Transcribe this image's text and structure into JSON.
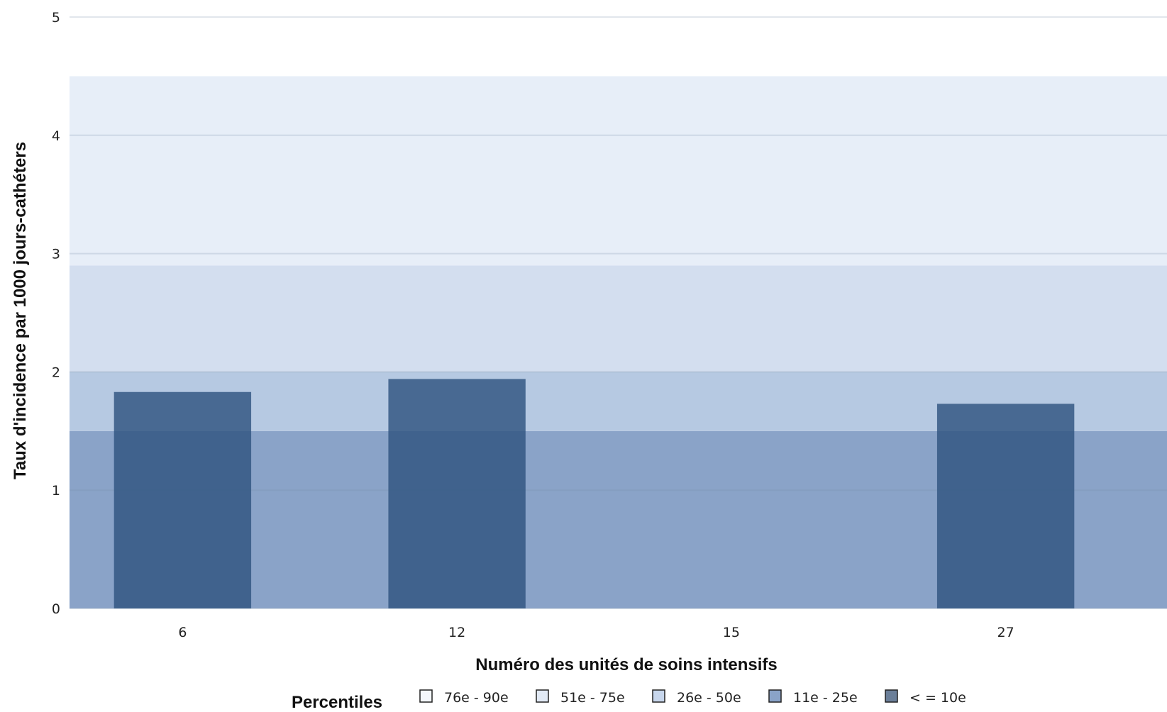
{
  "chart_data": {
    "type": "bar",
    "title": "",
    "xlabel": "Numéro des unités de soins intensifs",
    "ylabel": "Taux d'incidence par 1000 jours-cathéters",
    "categories": [
      "6",
      "12",
      "15",
      "27"
    ],
    "values": [
      1.83,
      1.94,
      0,
      1.73
    ],
    "ylim": [
      0,
      5
    ],
    "yticks": [
      "0",
      "1",
      "2",
      "3",
      "4",
      "5"
    ],
    "grid": true,
    "bar_color": "#2f5480",
    "percentile_bands": [
      {
        "label": "<= 10e",
        "from": 0,
        "to": 1.5,
        "color": "#8aa3c8"
      },
      {
        "label": "11e - 25e",
        "from": 1.5,
        "to": 2.0,
        "color": "#b6c9e2"
      },
      {
        "label": "26e - 50e",
        "from": 2.0,
        "to": 2.9,
        "color": "#d3deef"
      },
      {
        "label": "51e - 75e",
        "from": 2.9,
        "to": 4.5,
        "color": "#e7eef8"
      },
      {
        "label": "76e - 90e",
        "from": 4.5,
        "to": 5.0,
        "color": "#ffffff"
      }
    ],
    "legend": {
      "title": "Percentiles",
      "position": "bottom",
      "items": [
        {
          "label": "76e - 90e",
          "color": "#f4f7fb"
        },
        {
          "label": "51e - 75e",
          "color": "#e2eaf5"
        },
        {
          "label": "26e - 50e",
          "color": "#c7d6ec"
        },
        {
          "label": "11e - 25e",
          "color": "#8aa3c8"
        },
        {
          "label": "< = 10e",
          "color": "#6b7f99"
        }
      ]
    }
  }
}
